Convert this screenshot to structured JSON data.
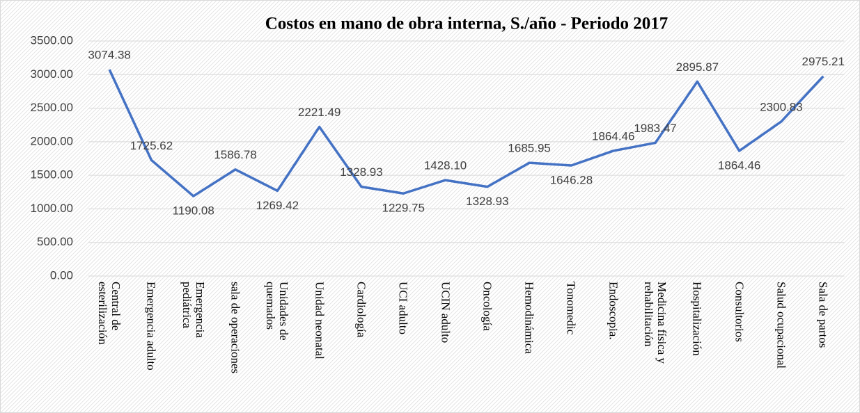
{
  "chart_data": {
    "type": "line",
    "title": "Costos en mano de obra interna, S./año - Periodo 2017",
    "categories": [
      "Central de esterilización",
      "Emergencia adulto",
      "Emergencia pediátrica",
      "sala de operaciones",
      "Unidades de quemados",
      "Unidad neonatal",
      "Cardiología",
      "UCI adulto",
      "UCIN adulto",
      "Oncología",
      "Hemodinámica",
      "Tonomedic",
      "Endoscopia.",
      "Medicina física y rehabilitación",
      "Hospitalización",
      "Consultorios",
      "Salud ocupacional",
      "Sala de partos"
    ],
    "values": [
      3074.38,
      1725.62,
      1190.08,
      1586.78,
      1269.42,
      2221.49,
      1328.93,
      1229.75,
      1428.1,
      1328.93,
      1685.95,
      1646.28,
      1864.46,
      1983.47,
      2895.87,
      1864.46,
      2300.83,
      2975.21
    ],
    "value_labels": [
      "3074.38",
      "1725.62",
      "1190.08",
      "1586.78",
      "1269.42",
      "2221.49",
      "1328.93",
      "1229.75",
      "1428.10",
      "1328.93",
      "1685.95",
      "1646.28",
      "1864.46",
      "1983.47",
      "2895.87",
      "1864.46",
      "2300.83",
      "2975.21"
    ],
    "color": "#4472c4",
    "ylim": [
      0,
      3500
    ],
    "yticks": [
      {
        "value": 0,
        "label": "0.00"
      },
      {
        "value": 500,
        "label": "500.00"
      },
      {
        "value": 1000,
        "label": "1000.00"
      },
      {
        "value": 1500,
        "label": "1500.00"
      },
      {
        "value": 2000,
        "label": "2000.00"
      },
      {
        "value": 2500,
        "label": "2500.00"
      },
      {
        "value": 3000,
        "label": "3000.00"
      },
      {
        "value": 3500,
        "label": "3500.00"
      }
    ],
    "grid": true
  }
}
